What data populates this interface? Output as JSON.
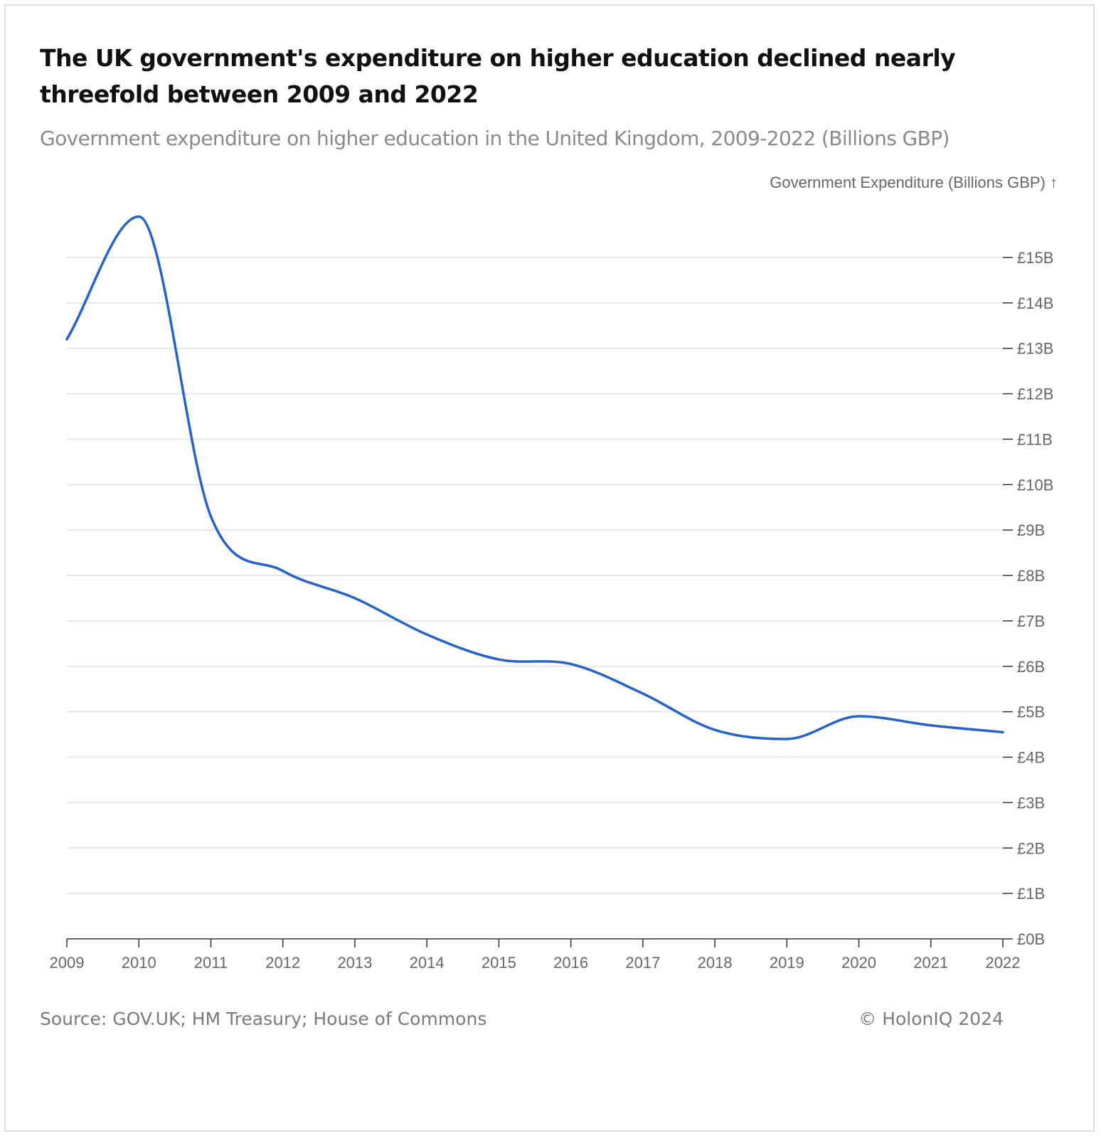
{
  "header": {
    "title": "The UK government's expenditure on higher education declined nearly threefold between 2009 and 2022",
    "subtitle": "Government expenditure on higher education in the United Kingdom, 2009-2022 (Billions GBP)"
  },
  "footer": {
    "source": "Source: GOV.UK; HM Treasury; House of Commons",
    "copyright": "© HolonIQ 2024"
  },
  "chart_data": {
    "type": "line",
    "ylabel": "Government Expenditure (Billions GBP) ↑",
    "x": [
      "2009",
      "2010",
      "2011",
      "2012",
      "2013",
      "2014",
      "2015",
      "2016",
      "2017",
      "2018",
      "2019",
      "2020",
      "2021",
      "2022"
    ],
    "x_tick_labels": [
      "2009",
      "2010",
      "2011",
      "2012",
      "2013",
      "2014",
      "2015",
      "2016",
      "2017",
      "2018",
      "2019",
      "2020",
      "2021",
      "2022"
    ],
    "series": [
      {
        "values": [
          13.2,
          15.9,
          9.3,
          8.1,
          7.5,
          6.7,
          6.15,
          6.05,
          5.4,
          4.6,
          4.4,
          4.9,
          4.7,
          4.55
        ],
        "color": "#2563c9"
      }
    ],
    "ylim": [
      0,
      15
    ],
    "y_ticks": [
      0,
      1,
      2,
      3,
      4,
      5,
      6,
      7,
      8,
      9,
      10,
      11,
      12,
      13,
      14,
      15
    ],
    "y_tick_labels": [
      "£0B",
      "£1B",
      "£2B",
      "£3B",
      "£4B",
      "£5B",
      "£6B",
      "£7B",
      "£8B",
      "£9B",
      "£10B",
      "£11B",
      "£12B",
      "£13B",
      "£14B",
      "£15B"
    ],
    "grid": true,
    "y_axis_side": "right",
    "colors": {
      "line": "#2563c9",
      "grid": "#e6e6e6",
      "axis": "#333333",
      "tick_text": "#666666"
    }
  }
}
